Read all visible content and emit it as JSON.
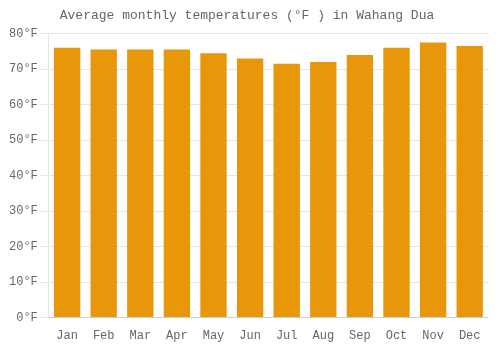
{
  "chart_data": {
    "type": "bar",
    "title": "Average monthly temperatures (°F ) in Wahang Dua",
    "categories": [
      "Jan",
      "Feb",
      "Mar",
      "Apr",
      "May",
      "Jun",
      "Jul",
      "Aug",
      "Sep",
      "Oct",
      "Nov",
      "Dec"
    ],
    "values": [
      76.0,
      75.5,
      75.5,
      75.5,
      74.5,
      73.0,
      71.5,
      72.0,
      74.0,
      76.0,
      77.5,
      76.5
    ],
    "color": "#E8960A",
    "ylim": [
      0,
      80
    ],
    "yticks": [
      {
        "value": 0,
        "label": "0°F"
      },
      {
        "value": 10,
        "label": "10°F"
      },
      {
        "value": 20,
        "label": "20°F"
      },
      {
        "value": 30,
        "label": "30°F"
      },
      {
        "value": 40,
        "label": "40°F"
      },
      {
        "value": 50,
        "label": "50°F"
      },
      {
        "value": 60,
        "label": "60°F"
      },
      {
        "value": 70,
        "label": "70°F"
      },
      {
        "value": 80,
        "label": "80°F"
      }
    ],
    "grid": true
  }
}
